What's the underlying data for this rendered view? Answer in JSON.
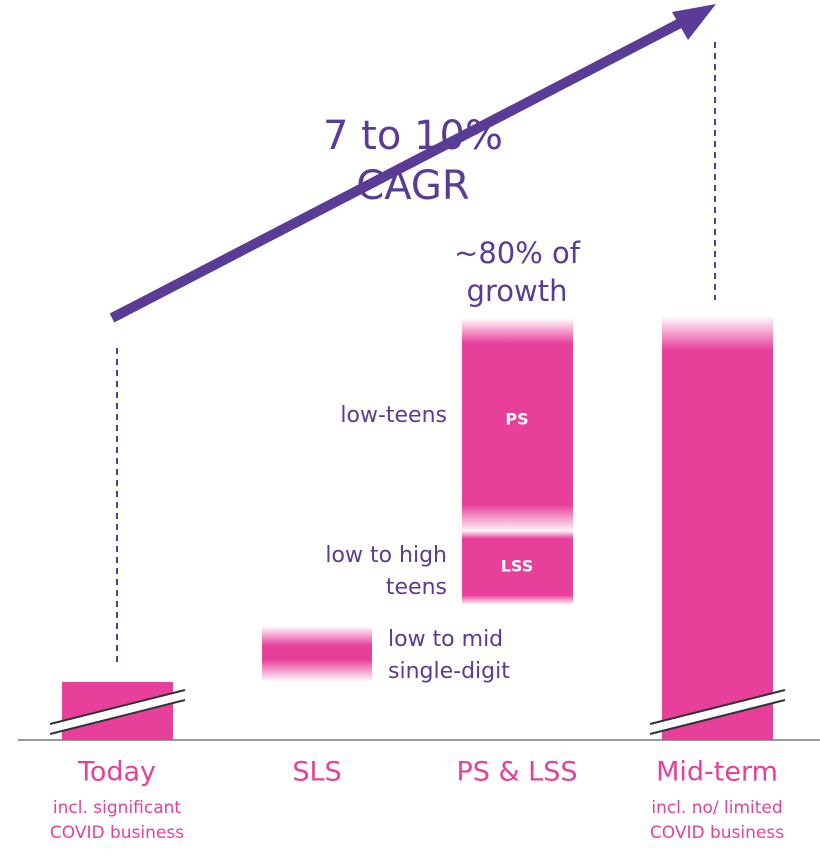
{
  "headline": {
    "lines": [
      "7 to 10%",
      "CAGR"
    ]
  },
  "growth_note": {
    "lines": [
      "~80% of",
      "growth"
    ]
  },
  "segments": [
    {
      "name": "PS",
      "label_lines": [
        "low-teens"
      ]
    },
    {
      "name": "LSS",
      "label_lines": [
        "low to high",
        "teens"
      ]
    },
    {
      "label_lines": [
        "low to mid",
        "single-digit"
      ]
    }
  ],
  "categories": [
    "Today",
    "SLS",
    "PS & LSS",
    "Mid-term"
  ],
  "notes": {
    "today": [
      "incl. significant",
      "COVID business"
    ],
    "mid_term": [
      "incl. no/ limited",
      "COVID business"
    ]
  }
}
